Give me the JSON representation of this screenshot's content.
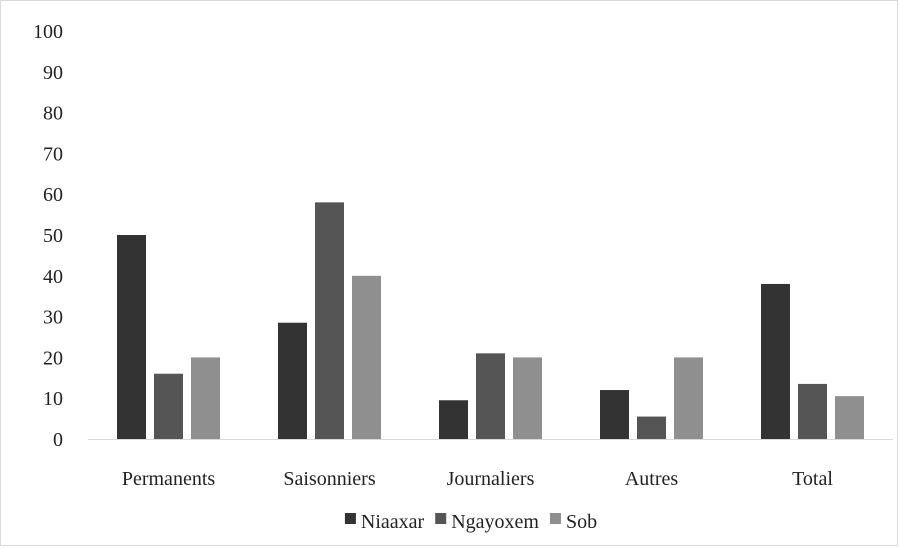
{
  "chart_data": {
    "type": "bar",
    "title": "",
    "xlabel": "",
    "ylabel": "",
    "ylim": [
      0,
      100
    ],
    "yticks": [
      0,
      10,
      20,
      30,
      40,
      50,
      60,
      70,
      80,
      90,
      100
    ],
    "grid": false,
    "legend_position": "bottom",
    "categories": [
      "Permanents",
      "Saisonniers",
      "Journaliers",
      "Autres",
      "Total"
    ],
    "series": [
      {
        "name": "Niaaxar",
        "color": "#333333",
        "values": [
          50,
          28.5,
          9.5,
          12,
          38
        ]
      },
      {
        "name": "Ngayoxem",
        "color": "#555555",
        "values": [
          16,
          58,
          21,
          5.5,
          13.5
        ]
      },
      {
        "name": "Sob",
        "color": "#8f8f8f",
        "values": [
          20,
          40,
          20,
          20,
          10.5
        ]
      }
    ]
  }
}
